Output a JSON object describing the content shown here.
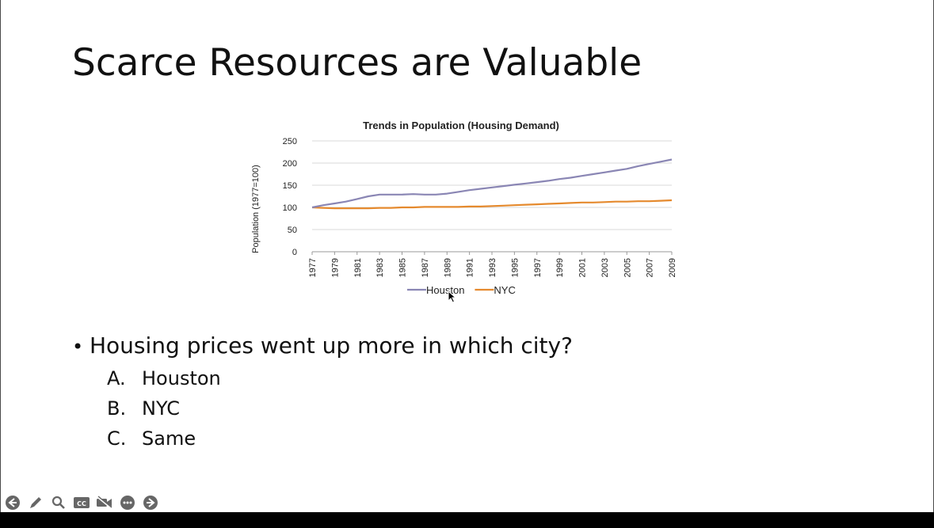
{
  "slide": {
    "title": "Scarce Resources are Valuable",
    "bullet": {
      "marker": "•",
      "question": "Housing prices went up more in which city?"
    },
    "options": [
      {
        "letter": "A.",
        "text": "Houston"
      },
      {
        "letter": "B.",
        "text": "NYC"
      },
      {
        "letter": "C.",
        "text": "Same"
      }
    ]
  },
  "chart_data": {
    "type": "line",
    "title": "Trends in Population (Housing Demand)",
    "xlabel": "",
    "ylabel": "Population (1977=100)",
    "ylim": [
      0,
      250
    ],
    "yticks": [
      0,
      50,
      100,
      150,
      200,
      250
    ],
    "x": [
      1977,
      1978,
      1979,
      1980,
      1981,
      1982,
      1983,
      1984,
      1985,
      1986,
      1987,
      1988,
      1989,
      1990,
      1991,
      1992,
      1993,
      1994,
      1995,
      1996,
      1997,
      1998,
      1999,
      2000,
      2001,
      2002,
      2003,
      2004,
      2005,
      2006,
      2007,
      2008,
      2009
    ],
    "xtick_labels": [
      "1977",
      "1979",
      "1981",
      "1983",
      "1985",
      "1987",
      "1989",
      "1991",
      "1993",
      "1995",
      "1997",
      "1999",
      "2001",
      "2003",
      "2005",
      "2007",
      "2009"
    ],
    "grid": true,
    "legend_position": "bottom",
    "series": [
      {
        "name": "Houston",
        "color": "#8a86b4",
        "values": [
          100,
          105,
          109,
          113,
          119,
          125,
          129,
          129,
          129,
          130,
          129,
          129,
          131,
          135,
          139,
          142,
          145,
          148,
          151,
          154,
          157,
          160,
          164,
          167,
          171,
          175,
          179,
          183,
          187,
          193,
          198,
          203,
          208
        ]
      },
      {
        "name": "NYC",
        "color": "#e58a2e",
        "values": [
          100,
          99,
          98,
          98,
          98,
          98,
          99,
          99,
          100,
          100,
          101,
          101,
          101,
          101,
          102,
          102,
          103,
          104,
          105,
          106,
          107,
          108,
          109,
          110,
          111,
          111,
          112,
          113,
          113,
          114,
          114,
          115,
          116
        ]
      }
    ]
  },
  "toolbar": {
    "icons": [
      "back-arrow-icon",
      "pen-icon",
      "zoom-icon",
      "closed-captions-icon",
      "video-off-icon",
      "more-options-icon",
      "forward-arrow-icon"
    ],
    "cc_label": "CC"
  }
}
